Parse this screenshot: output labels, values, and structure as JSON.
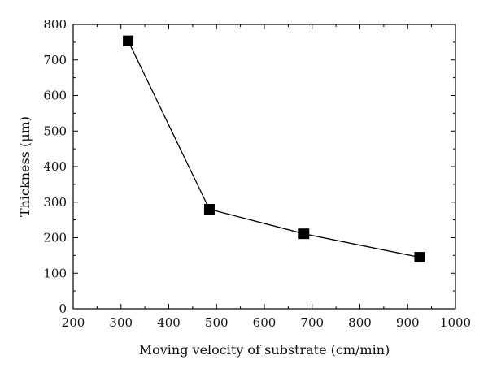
{
  "chart_data": {
    "type": "line",
    "xlabel": "Moving velocity of substrate (cm/min)",
    "ylabel": "Thickness (μm)",
    "xlim": [
      200,
      1000
    ],
    "ylim": [
      0,
      800
    ],
    "x_ticks": [
      "200",
      "300",
      "400",
      "500",
      "600",
      "700",
      "800",
      "900",
      "1000"
    ],
    "y_ticks": [
      "0",
      "100",
      "200",
      "300",
      "400",
      "500",
      "600",
      "700",
      "800"
    ],
    "grid": false,
    "marker": "square",
    "line_color": "#000000",
    "marker_color": "#000000",
    "series": [
      {
        "x": [
          315,
          485,
          683,
          925
        ],
        "y": [
          754,
          280,
          211,
          145
        ]
      }
    ]
  }
}
